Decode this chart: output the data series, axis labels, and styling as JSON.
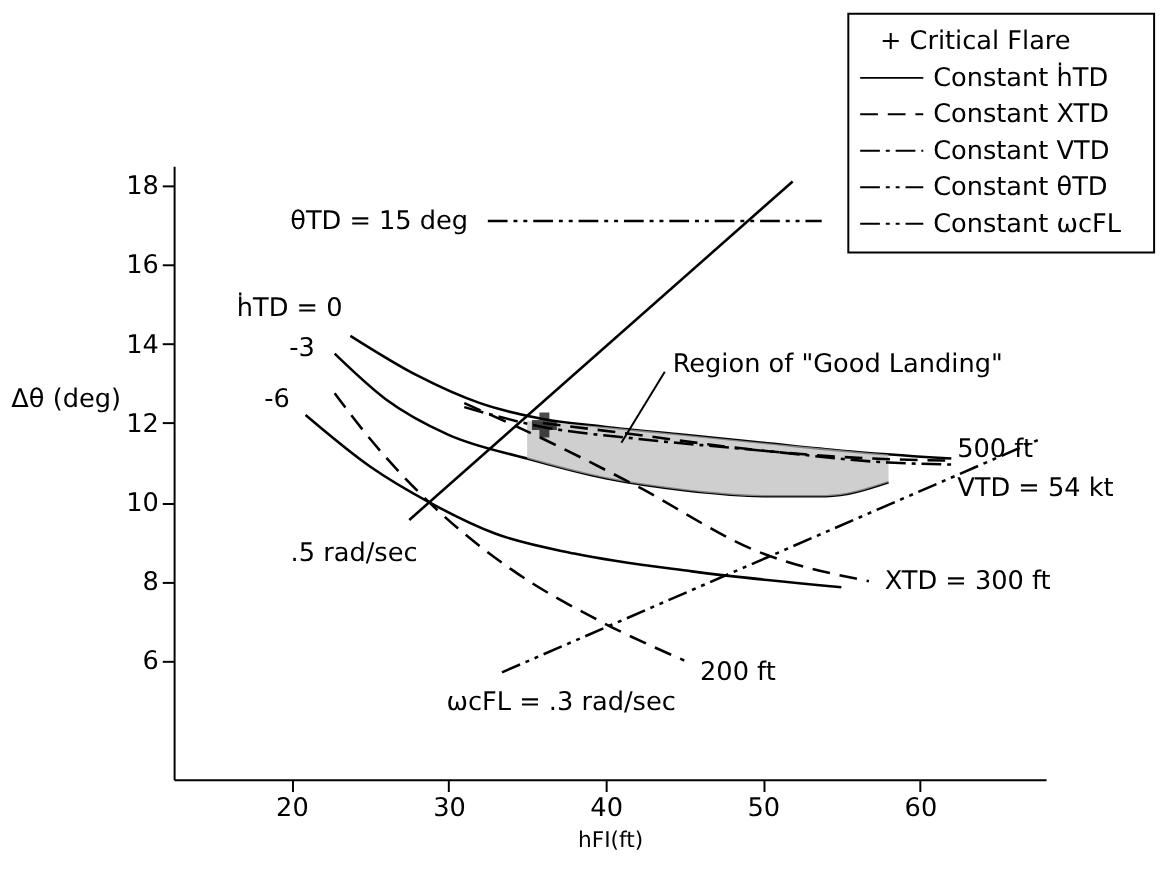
{
  "chart_data": {
    "type": "line",
    "xlabel": "hFI(ft)",
    "ylabel": "Δθ (deg)",
    "xlim": [
      12.5,
      68
    ],
    "ylim": [
      3,
      18.5
    ],
    "xticks": [
      20,
      30,
      40,
      50,
      60
    ],
    "yticks": [
      6,
      8,
      10,
      12,
      14,
      16,
      18
    ],
    "grid": false,
    "series": [
      {
        "name": "ḣTD = 0",
        "line_style": "solid",
        "color": "#000000",
        "x": [
          23.75,
          28,
          32,
          36,
          40,
          45,
          50,
          55,
          62
        ],
        "values": [
          14.2,
          13.2,
          12.5,
          12.1,
          11.9,
          11.7,
          11.5,
          11.3,
          11.1
        ]
      },
      {
        "name": "-3",
        "line_style": "solid",
        "color": "#000000",
        "x": [
          22.75,
          26,
          30,
          35,
          40,
          45,
          50,
          54,
          58
        ],
        "values": [
          13.75,
          12.6,
          11.7,
          11.1,
          10.6,
          10.3,
          10.15,
          10.15,
          10.5
        ],
        "lower": [
          null,
          null,
          null,
          11.1,
          10.6,
          10.3,
          10.15,
          10.15,
          10.5
        ],
        "upper": [
          null,
          null,
          null,
          12.05,
          11.9,
          11.7,
          11.5,
          11.35,
          11.2
        ]
      },
      {
        "name": "-6",
        "line_style": "solid",
        "color": "#000000",
        "x": [
          20.9,
          25,
          28.75,
          33,
          38,
          45.5,
          55
        ],
        "values": [
          12.2,
          10.9,
          10.0,
          9.2,
          8.7,
          8.25,
          7.85
        ]
      },
      {
        "name": "XTD = 300 ft",
        "line_style": "dashed",
        "color": "#000000",
        "x": [
          31,
          36,
          42,
          49.7,
          56.75
        ],
        "values": [
          12.5,
          11.6,
          10.4,
          8.75,
          8.0
        ]
      },
      {
        "name": "200 ft",
        "line_style": "dashed",
        "color": "#000000",
        "x": [
          22.75,
          25,
          28.75,
          34,
          39.6,
          45
        ],
        "values": [
          12.75,
          11.6,
          10.0,
          8.3,
          7.0,
          6.0
        ]
      },
      {
        "name": "500 ft",
        "line_style": "dashed",
        "color": "#000000",
        "x": [
          36,
          42,
          50,
          57,
          62
        ],
        "values": [
          12.0,
          11.7,
          11.3,
          11.1,
          11.05
        ]
      },
      {
        "name": "VTD = 54 kt",
        "line_style": "dashdot",
        "color": "#000000",
        "x": [
          31,
          36,
          42,
          50,
          58,
          62
        ],
        "values": [
          12.4,
          11.9,
          11.6,
          11.3,
          11.0,
          10.95
        ]
      },
      {
        "name": "θTD = 15 deg",
        "line_style": "dashdotdot",
        "color": "#000000",
        "x": [
          32.5,
          53.75
        ],
        "values": [
          17.1,
          17.1
        ]
      },
      {
        "name": ".5 rad/sec",
        "line_style": "solid",
        "color": "#000000",
        "x": [
          27.5,
          51.9
        ],
        "values": [
          9.55,
          18.1
        ]
      },
      {
        "name": "ωcFL = .3 rad/sec",
        "line_style": "dashdotdot",
        "color": "#000000",
        "x": [
          33.4,
          67.7
        ],
        "values": [
          5.7,
          11.6
        ]
      },
      {
        "type": "scatter",
        "marker": "cross",
        "color": "#000000",
        "x": [
          36.1
        ],
        "values": [
          11.95
        ]
      }
    ],
    "annotations": [
      {
        "text": "Region of \"Good Landing\"",
        "x": 41,
        "y": 11.5
      },
      "+ Critical Flare",
      "Constant ḣTD",
      "Constant XTD",
      "Constant VTD",
      "Constant θTD",
      "Constant ωcFL"
    ]
  }
}
